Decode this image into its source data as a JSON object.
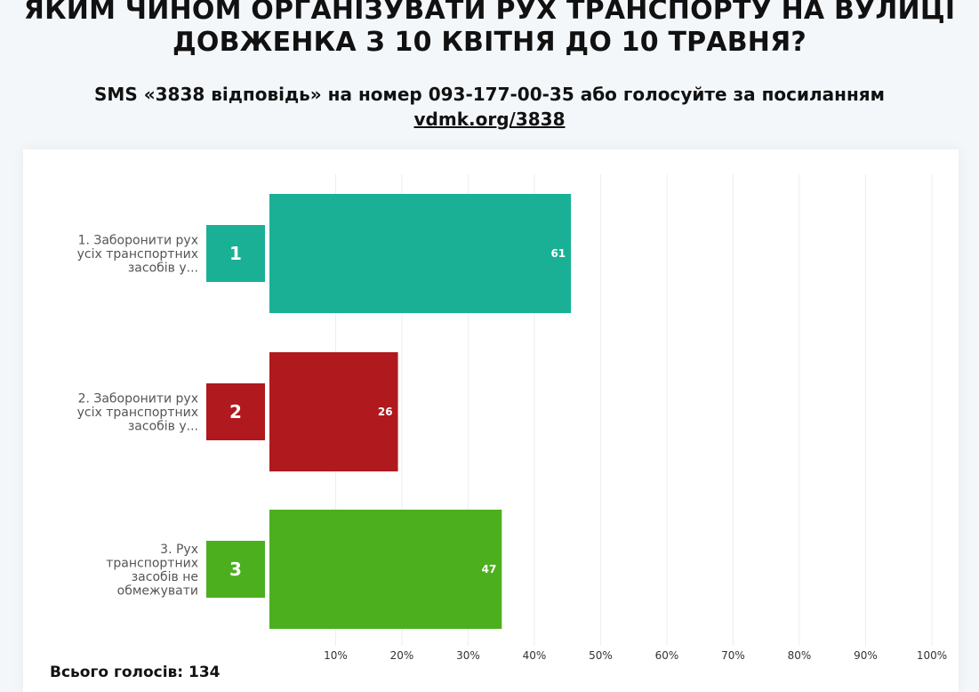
{
  "poll": {
    "title": "ЯКИМ ЧИНОМ ОРГАНІЗУВАТИ РУХ ТРАНСПОРТУ НА ВУЛИЦІ\nДОВЖЕНКА З 10 КВІТНЯ ДО 10 ТРАВНЯ?",
    "subtitle": "SMS «3838 відповідь» на номер 093-177-00-35 або голосуйте за посиланням",
    "link": "vdmk.org/3838",
    "total_label": "Всього голосів: 134"
  },
  "chart_data": {
    "type": "bar",
    "orientation": "horizontal",
    "categories": [
      "1. Заборонити рух усіх транспортних засобів у...",
      "2. Заборонити рух усіх транспортних засобів у...",
      "3. Рух транспортних засобів не обмежувати"
    ],
    "category_lines": [
      [
        "1. Заборонити рух",
        "усіх транспортних",
        "засобів у..."
      ],
      [
        "2. Заборонити рух",
        "усіх транспортних",
        "засобів у..."
      ],
      [
        "3. Рух",
        "транспортних",
        "засобів не",
        "обмежувати"
      ]
    ],
    "badges": [
      "1",
      "2",
      "3"
    ],
    "values": [
      61,
      26,
      47
    ],
    "colors": [
      "#1ab096",
      "#b0191d",
      "#4caf1e"
    ],
    "total": 134,
    "xlim": [
      0,
      100
    ],
    "xticks": [
      "10%",
      "20%",
      "30%",
      "40%",
      "50%",
      "60%",
      "70%",
      "80%",
      "90%",
      "100%"
    ],
    "grid": true
  }
}
